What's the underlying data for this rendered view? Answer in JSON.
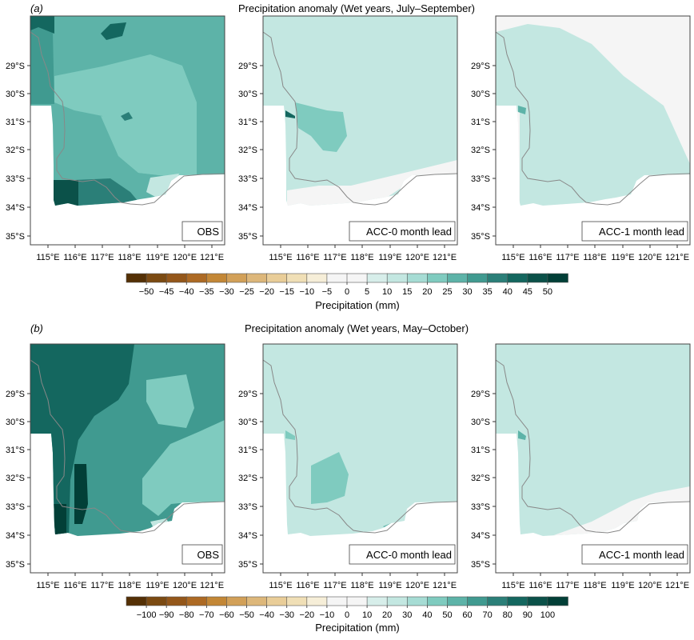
{
  "panels": [
    {
      "label": "(a)",
      "title": "Precipitation anomaly (Wet years, July–September)",
      "maps": [
        {
          "caption": "OBS"
        },
        {
          "caption": "ACC-0 month lead"
        },
        {
          "caption": "ACC-1 month lead"
        }
      ],
      "colorbar": {
        "title": "Precipitation (mm)",
        "ticks": [
          "−50",
          "−45",
          "−40",
          "−35",
          "−30",
          "−25",
          "−20",
          "−15",
          "−10",
          "−5",
          "0",
          "5",
          "10",
          "15",
          "20",
          "25",
          "30",
          "35",
          "40",
          "45",
          "50"
        ]
      }
    },
    {
      "label": "(b)",
      "title": "Precipitation anomaly (Wet years, May–October)",
      "maps": [
        {
          "caption": "OBS"
        },
        {
          "caption": "ACC-0 month lead"
        },
        {
          "caption": "ACC-1 month lead"
        }
      ],
      "colorbar": {
        "title": "Precipitation (mm)",
        "ticks": [
          "−100",
          "−90",
          "−80",
          "−70",
          "−60",
          "−50",
          "−40",
          "−30",
          "−20",
          "−10",
          "0",
          "10",
          "20",
          "30",
          "40",
          "50",
          "60",
          "70",
          "80",
          "90",
          "100"
        ]
      }
    }
  ],
  "lat_labels": [
    "29°S",
    "30°S",
    "31°S",
    "32°S",
    "33°S",
    "34°S",
    "35°S"
  ],
  "lon_labels": [
    "115°E",
    "116°E",
    "117°E",
    "118°E",
    "119°E",
    "120°E",
    "121°E"
  ],
  "palette": [
    "#543005",
    "#7b4a12",
    "#94571a",
    "#ad6a24",
    "#c38736",
    "#d2a058",
    "#ddb77a",
    "#e9cd98",
    "#f0dfb6",
    "#f6eed8",
    "#f5f5f5",
    "#d7eeea",
    "#c3e7e1",
    "#a6dcd4",
    "#7fcbbf",
    "#5db3a8",
    "#409a90",
    "#2b7f78",
    "#14675f",
    "#0b5149",
    "#023f37"
  ]
}
